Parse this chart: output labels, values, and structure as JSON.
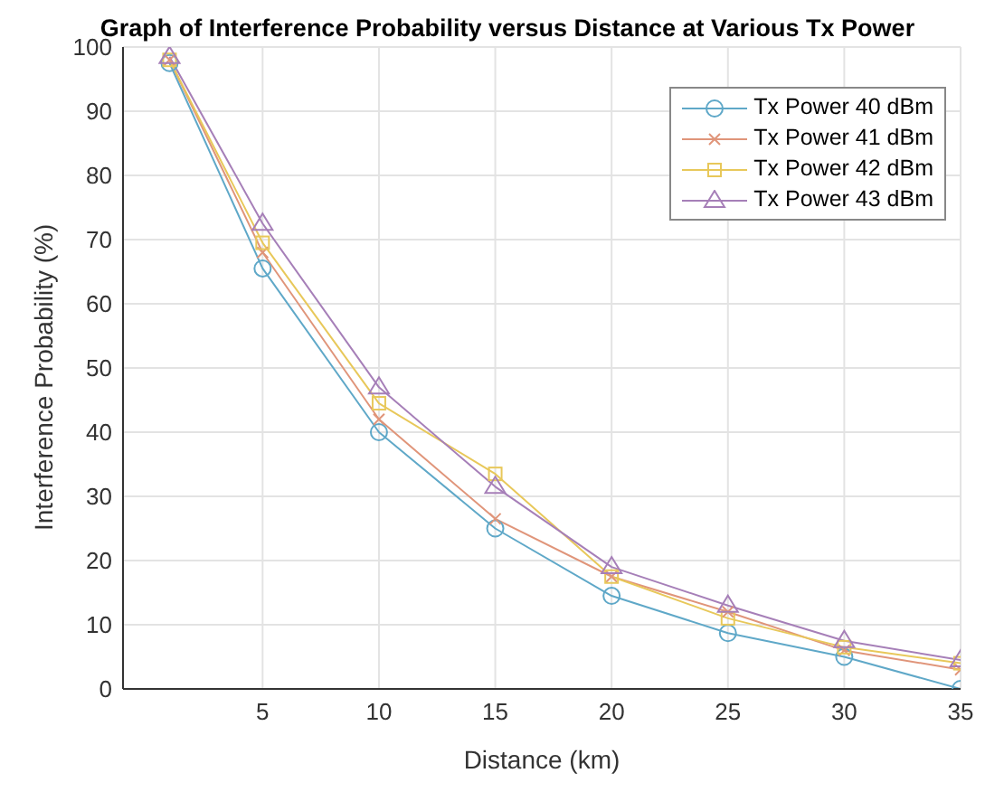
{
  "chart_data": {
    "type": "line",
    "title": "Graph of Interference Probability versus Distance at Various Tx Power",
    "xlabel": "Distance (km)",
    "ylabel": "Interference Probability (%)",
    "x": [
      1,
      5,
      10,
      15,
      20,
      25,
      30,
      35
    ],
    "series": [
      {
        "name": "Tx Power 40 dBm",
        "color": "#5fa8c8",
        "marker": "circle",
        "values": [
          97.5,
          65.5,
          40,
          25,
          14.5,
          8.7,
          5,
          0
        ]
      },
      {
        "name": "Tx Power 41 dBm",
        "color": "#e0957a",
        "marker": "cross",
        "values": [
          98,
          68,
          42,
          26.5,
          17.5,
          12,
          6,
          3
        ]
      },
      {
        "name": "Tx Power 42 dBm",
        "color": "#e8c85a",
        "marker": "square",
        "values": [
          98,
          69.5,
          44.5,
          33.5,
          17.5,
          11,
          6.5,
          4
        ]
      },
      {
        "name": "Tx Power 43 dBm",
        "color": "#a67fb8",
        "marker": "triangle",
        "values": [
          98.5,
          72.5,
          47,
          31.5,
          19,
          13,
          7.5,
          4.5
        ]
      }
    ],
    "xlim": [
      -1,
      35
    ],
    "xticks": [
      5,
      10,
      15,
      20,
      25,
      30,
      35
    ],
    "ylim": [
      0,
      100
    ],
    "yticks": [
      0,
      10,
      20,
      30,
      40,
      50,
      60,
      70,
      80,
      90,
      100
    ],
    "grid": true,
    "legend": "top right",
    "line_style": "solid"
  }
}
